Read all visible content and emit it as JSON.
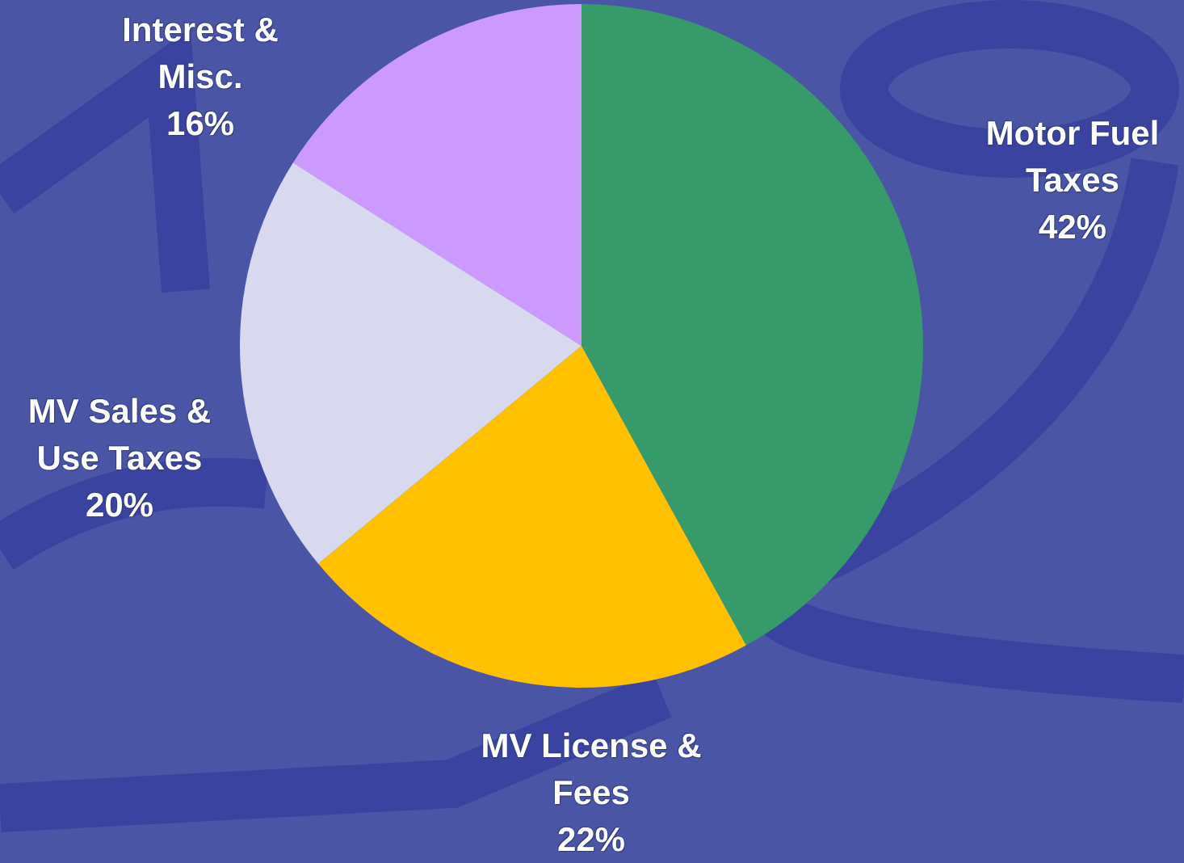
{
  "chart_data": {
    "type": "pie",
    "categories": [
      "Motor Fuel Taxes",
      "MV License & Fees",
      "MV Sales & Use Taxes",
      "Interest & Misc."
    ],
    "values": [
      42,
      22,
      20,
      16
    ],
    "value_labels": [
      "42%",
      "22%",
      "20%",
      "16%"
    ],
    "colors": [
      "#379a6a",
      "#ffc000",
      "#d8d8ee",
      "#cc99ff"
    ]
  }
}
